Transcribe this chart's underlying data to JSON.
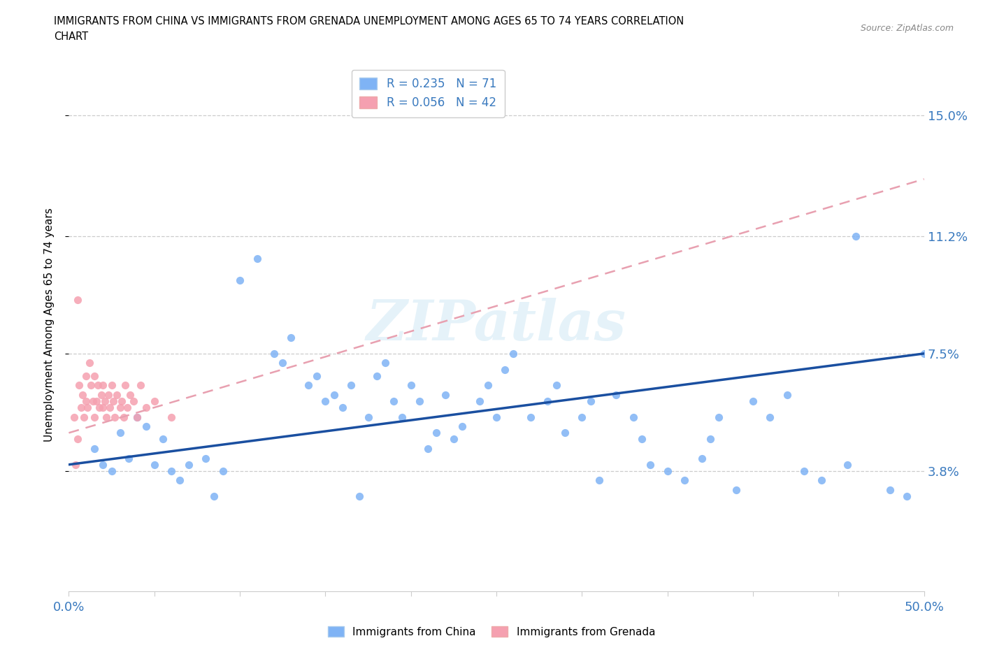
{
  "title_line1": "IMMIGRANTS FROM CHINA VS IMMIGRANTS FROM GRENADA UNEMPLOYMENT AMONG AGES 65 TO 74 YEARS CORRELATION",
  "title_line2": "CHART",
  "source_text": "Source: ZipAtlas.com",
  "ylabel": "Unemployment Among Ages 65 to 74 years",
  "xlim": [
    0.0,
    0.5
  ],
  "ylim": [
    0.0,
    0.168
  ],
  "xtick_positions": [
    0.0,
    0.05,
    0.1,
    0.15,
    0.2,
    0.25,
    0.3,
    0.35,
    0.4,
    0.45,
    0.5
  ],
  "xticklabels": [
    "0.0%",
    "",
    "",
    "",
    "",
    "",
    "",
    "",
    "",
    "",
    "50.0%"
  ],
  "ytick_positions": [
    0.038,
    0.075,
    0.112,
    0.15
  ],
  "yticklabels": [
    "3.8%",
    "7.5%",
    "11.2%",
    "15.0%"
  ],
  "china_color": "#7fb3f5",
  "grenada_color": "#f5a0b0",
  "china_line_color": "#1a4fa0",
  "grenada_line_color": "#e8a0b0",
  "legend_R_china": "R = 0.235",
  "legend_N_china": "N = 71",
  "legend_R_grenada": "R = 0.056",
  "legend_N_grenada": "N = 42",
  "watermark": "ZIPatlas",
  "china_scatter_x": [
    0.015,
    0.02,
    0.025,
    0.03,
    0.035,
    0.04,
    0.045,
    0.05,
    0.055,
    0.06,
    0.065,
    0.07,
    0.08,
    0.085,
    0.09,
    0.1,
    0.11,
    0.12,
    0.125,
    0.13,
    0.14,
    0.145,
    0.15,
    0.155,
    0.16,
    0.165,
    0.17,
    0.175,
    0.18,
    0.185,
    0.19,
    0.195,
    0.2,
    0.205,
    0.21,
    0.215,
    0.22,
    0.225,
    0.23,
    0.24,
    0.245,
    0.25,
    0.255,
    0.26,
    0.27,
    0.28,
    0.285,
    0.29,
    0.3,
    0.305,
    0.31,
    0.32,
    0.33,
    0.335,
    0.34,
    0.35,
    0.36,
    0.37,
    0.375,
    0.38,
    0.39,
    0.4,
    0.41,
    0.42,
    0.43,
    0.44,
    0.455,
    0.46,
    0.48,
    0.49,
    0.5
  ],
  "china_scatter_y": [
    0.045,
    0.04,
    0.038,
    0.05,
    0.042,
    0.055,
    0.052,
    0.04,
    0.048,
    0.038,
    0.035,
    0.04,
    0.042,
    0.03,
    0.038,
    0.098,
    0.105,
    0.075,
    0.072,
    0.08,
    0.065,
    0.068,
    0.06,
    0.062,
    0.058,
    0.065,
    0.03,
    0.055,
    0.068,
    0.072,
    0.06,
    0.055,
    0.065,
    0.06,
    0.045,
    0.05,
    0.062,
    0.048,
    0.052,
    0.06,
    0.065,
    0.055,
    0.07,
    0.075,
    0.055,
    0.06,
    0.065,
    0.05,
    0.055,
    0.06,
    0.035,
    0.062,
    0.055,
    0.048,
    0.04,
    0.038,
    0.035,
    0.042,
    0.048,
    0.055,
    0.032,
    0.06,
    0.055,
    0.062,
    0.038,
    0.035,
    0.04,
    0.112,
    0.032,
    0.03,
    0.075
  ],
  "grenada_scatter_x": [
    0.003,
    0.004,
    0.005,
    0.005,
    0.006,
    0.007,
    0.008,
    0.009,
    0.01,
    0.01,
    0.011,
    0.012,
    0.013,
    0.014,
    0.015,
    0.015,
    0.016,
    0.017,
    0.018,
    0.019,
    0.02,
    0.02,
    0.021,
    0.022,
    0.023,
    0.024,
    0.025,
    0.026,
    0.027,
    0.028,
    0.03,
    0.031,
    0.032,
    0.033,
    0.034,
    0.036,
    0.038,
    0.04,
    0.042,
    0.045,
    0.05,
    0.06
  ],
  "grenada_scatter_y": [
    0.055,
    0.04,
    0.092,
    0.048,
    0.065,
    0.058,
    0.062,
    0.055,
    0.068,
    0.06,
    0.058,
    0.072,
    0.065,
    0.06,
    0.068,
    0.055,
    0.06,
    0.065,
    0.058,
    0.062,
    0.065,
    0.058,
    0.06,
    0.055,
    0.062,
    0.058,
    0.065,
    0.06,
    0.055,
    0.062,
    0.058,
    0.06,
    0.055,
    0.065,
    0.058,
    0.062,
    0.06,
    0.055,
    0.065,
    0.058,
    0.06,
    0.055
  ],
  "china_line_x0": 0.0,
  "china_line_y0": 0.04,
  "china_line_x1": 0.5,
  "china_line_y1": 0.075,
  "grenada_line_x0": 0.0,
  "grenada_line_y0": 0.05,
  "grenada_line_x1": 0.5,
  "grenada_line_y1": 0.13
}
